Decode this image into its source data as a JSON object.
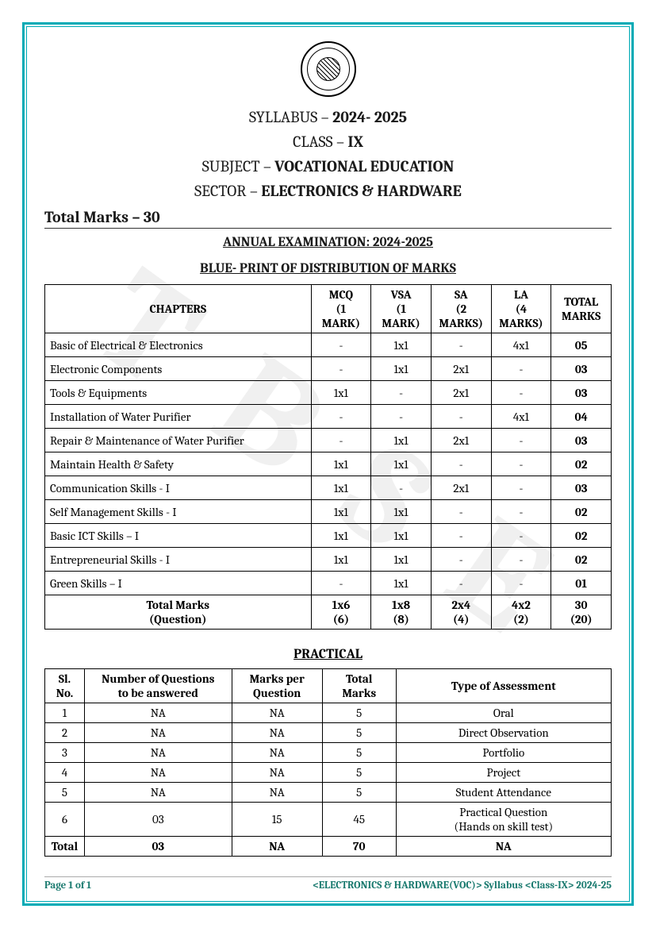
{
  "watermark_text": "T B S E",
  "header": {
    "syllabus_line_prefix": "SYLLABUS – ",
    "syllabus_year": "2024- 2025",
    "class_prefix": "CLASS – ",
    "class_value": "IX",
    "subject_prefix": "SUBJECT – ",
    "subject_value": "VOCATIONAL EDUCATION",
    "sector_prefix": "SECTOR – ",
    "sector_value": "ELECTRONICS & HARDWARE"
  },
  "total_marks_label": "Total Marks – 30",
  "annual_exam_heading": "ANNUAL EXAMINATION: 2024-2025",
  "blueprint_heading": "BLUE- PRINT OF DISTRIBUTION OF MARKS",
  "marks_table": {
    "columns": {
      "chapters": "CHAPTERS",
      "mcq_l1": "MCQ",
      "mcq_l2": "(1",
      "mcq_l3": "MARK)",
      "vsa_l1": "VSA",
      "vsa_l2": "(1",
      "vsa_l3": "MARK)",
      "sa_l1": "SA",
      "sa_l2": "(2",
      "sa_l3": "MARKS)",
      "la_l1": "LA",
      "la_l2": "(4",
      "la_l3": "MARKS)",
      "total_l1": "TOTAL",
      "total_l2": "MARKS"
    },
    "rows": [
      {
        "chapter": "Basic of Electrical & Electronics",
        "mcq": "-",
        "vsa": "1x1",
        "sa": "-",
        "la": "4x1",
        "total": "05"
      },
      {
        "chapter": "Electronic Components",
        "mcq": "-",
        "vsa": "1x1",
        "sa": "2x1",
        "la": "-",
        "total": "03"
      },
      {
        "chapter": "Tools & Equipments",
        "mcq": "1x1",
        "vsa": "-",
        "sa": "2x1",
        "la": "-",
        "total": "03"
      },
      {
        "chapter": "Installation of Water Purifier",
        "mcq": "-",
        "vsa": "-",
        "sa": "-",
        "la": "4x1",
        "total": "04"
      },
      {
        "chapter": "Repair & Maintenance of Water Purifier",
        "mcq": "-",
        "vsa": "1x1",
        "sa": "2x1",
        "la": "-",
        "total": "03"
      },
      {
        "chapter": "Maintain Health & Safety",
        "mcq": "1x1",
        "vsa": "1x1",
        "sa": "-",
        "la": "-",
        "total": "02"
      },
      {
        "chapter": "Communication Skills - I",
        "mcq": "1x1",
        "vsa": "-",
        "sa": "2x1",
        "la": "-",
        "total": "03"
      },
      {
        "chapter": "Self Management Skills - I",
        "mcq": "1x1",
        "vsa": "1x1",
        "sa": "-",
        "la": "-",
        "total": "02"
      },
      {
        "chapter": "Basic ICT Skills – I",
        "mcq": "1x1",
        "vsa": "1x1",
        "sa": "-",
        "la": "-",
        "total": "02"
      },
      {
        "chapter": "Entrepreneurial Skills - I",
        "mcq": "1x1",
        "vsa": "1x1",
        "sa": "-",
        "la": "-",
        "total": "02"
      },
      {
        "chapter": "Green Skills – I",
        "mcq": "-",
        "vsa": "1x1",
        "sa": "-",
        "la": "-",
        "total": "01"
      }
    ],
    "totals": {
      "label_l1": "Total Marks",
      "label_l2": "(Question)",
      "mcq_l1": "1x6",
      "mcq_l2": "(6)",
      "vsa_l1": "1x8",
      "vsa_l2": "(8)",
      "sa_l1": "2x4",
      "sa_l2": "(4)",
      "la_l1": "4x2",
      "la_l2": "(2)",
      "tot_l1": "30",
      "tot_l2": "(20)"
    }
  },
  "practical_heading": "PRACTICAL",
  "practical_table": {
    "columns": {
      "sl_l1": "Sl.",
      "sl_l2": "No.",
      "nq_l1": "Number of Questions",
      "nq_l2": "to be answered",
      "mp_l1": "Marks per",
      "mp_l2": "Question",
      "tm_l1": "Total",
      "tm_l2": "Marks",
      "ta": "Type of Assessment"
    },
    "rows": [
      {
        "sl": "1",
        "nq": "NA",
        "mp": "NA",
        "tm": "5",
        "ta": "Oral"
      },
      {
        "sl": "2",
        "nq": "NA",
        "mp": "NA",
        "tm": "5",
        "ta": "Direct Observation"
      },
      {
        "sl": "3",
        "nq": "NA",
        "mp": "NA",
        "tm": "5",
        "ta": "Portfolio"
      },
      {
        "sl": "4",
        "nq": "NA",
        "mp": "NA",
        "tm": "5",
        "ta": "Project"
      },
      {
        "sl": "5",
        "nq": "NA",
        "mp": "NA",
        "tm": "5",
        "ta": "Student Attendance"
      },
      {
        "sl": "6",
        "nq": "03",
        "mp": "15",
        "tm": "45",
        "ta_l1": "Practical Question",
        "ta_l2": "(Hands on skill test)"
      }
    ],
    "totals": {
      "label": "Total",
      "nq": "03",
      "mp": "NA",
      "tm": "70",
      "ta": "NA"
    }
  },
  "footer": {
    "left": "Page 1 of 1",
    "right": "<ELECTRONICS & HARDWARE(VOC)> Syllabus <Class-IX> 2024-25"
  },
  "colors": {
    "border": "#00aab5",
    "footer_text": "#1a7a6f",
    "text": "#1a1a1a"
  }
}
